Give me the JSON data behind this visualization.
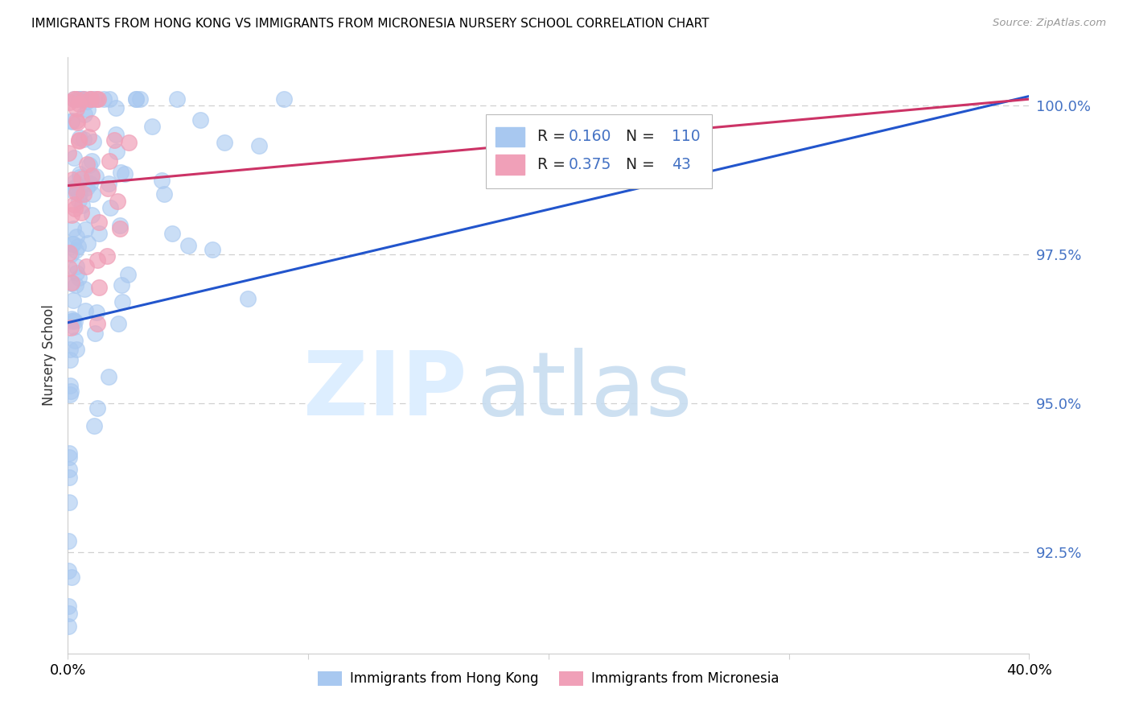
{
  "title": "IMMIGRANTS FROM HONG KONG VS IMMIGRANTS FROM MICRONESIA NURSERY SCHOOL CORRELATION CHART",
  "source": "Source: ZipAtlas.com",
  "ylabel": "Nursery School",
  "ytick_labels": [
    "100.0%",
    "97.5%",
    "95.0%",
    "92.5%"
  ],
  "ytick_values": [
    1.0,
    0.975,
    0.95,
    0.925
  ],
  "legend_blue_label": "Immigrants from Hong Kong",
  "legend_pink_label": "Immigrants from Micronesia",
  "R_blue": 0.16,
  "N_blue": 110,
  "R_pink": 0.375,
  "N_pink": 43,
  "blue_color": "#a8c8f0",
  "pink_color": "#f0a0b8",
  "blue_line_color": "#2255cc",
  "pink_line_color": "#cc3366",
  "xmin": 0.0,
  "xmax": 0.4,
  "ymin": 0.908,
  "ymax": 1.008,
  "blue_line_y0": 0.9635,
  "blue_line_y1": 1.0015,
  "pink_line_y0": 0.9865,
  "pink_line_y1": 1.001,
  "label_color": "#4472c4",
  "grid_color": "#d0d0d0",
  "spine_color": "#cccccc",
  "watermark_zip_color": "#ddeeff",
  "watermark_atlas_color": "#c8ddf0"
}
